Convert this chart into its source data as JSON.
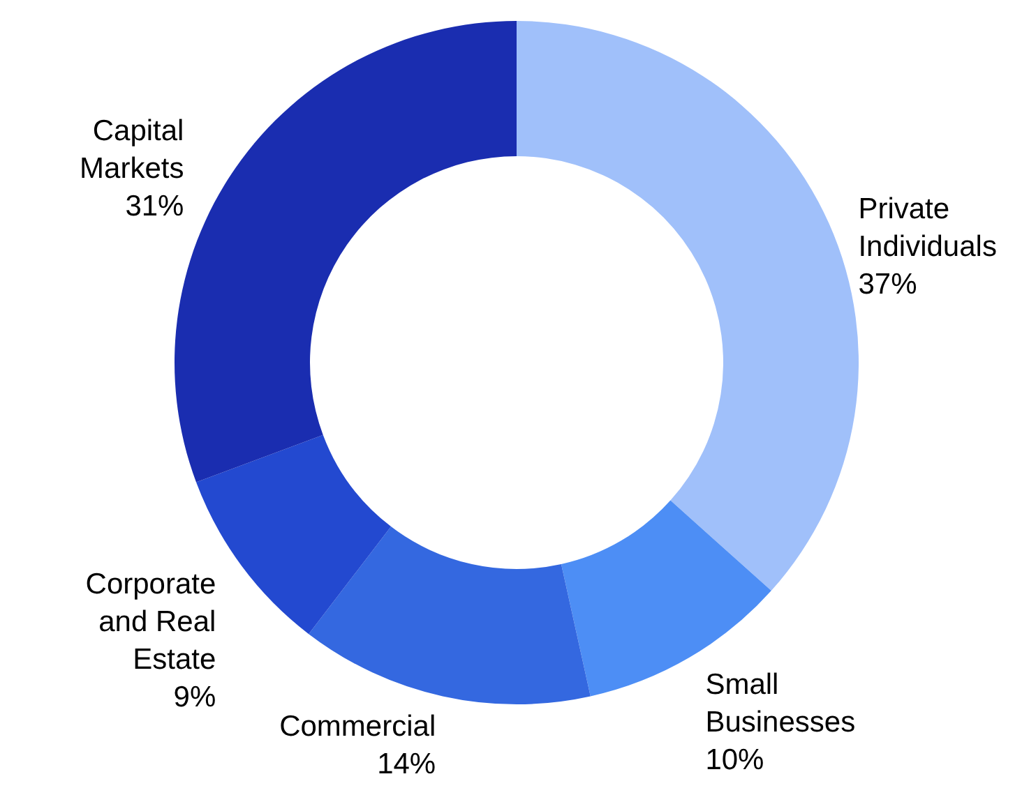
{
  "chart_data": {
    "type": "donut",
    "categories": [
      "Private\nIndividuals",
      "Small\nBusinesses",
      "Commercial",
      "Corporate\nand Real\nEstate",
      "Capital\nMarkets"
    ],
    "values": [
      37,
      10,
      14,
      9,
      31
    ],
    "value_labels": [
      "37%",
      "10%",
      "14%",
      "9%",
      "31%"
    ],
    "colors": [
      "#a0c0fa",
      "#4d8ef5",
      "#3468e0",
      "#2349d0",
      "#1a2db0"
    ]
  }
}
